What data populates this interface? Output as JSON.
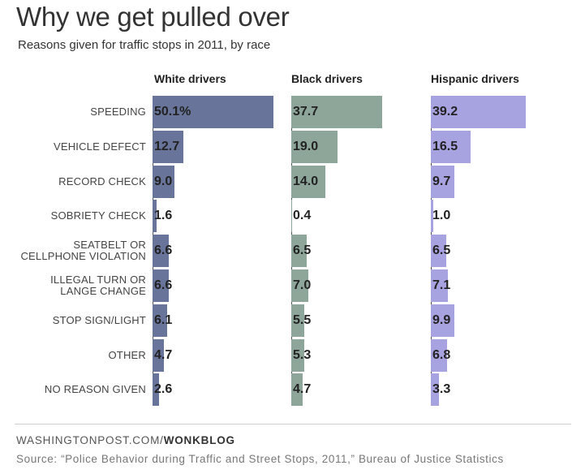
{
  "title": "Why we get pulled over",
  "subtitle": "Reasons given for traffic stops in 2011, by race",
  "credit_prefix": "WASHINGTONPOST.COM/",
  "credit_bold": "WONKBLOG",
  "source": "Source: “Police Behavior during Traffic and Street Stops, 2011,” Bureau of Justice Statistics",
  "chart_data": {
    "type": "bar",
    "orientation": "horizontal",
    "title": "Why we get pulled over",
    "subtitle": "Reasons given for traffic stops in 2011, by race",
    "categories": [
      [
        "SPEEDING"
      ],
      [
        "VEHICLE DEFECT"
      ],
      [
        "RECORD CHECK"
      ],
      [
        "SOBRIETY CHECK"
      ],
      [
        "SEATBELT OR",
        "CELLPHONE VIOLATION"
      ],
      [
        "ILLEGAL TURN OR",
        "LANGE CHANGE"
      ],
      [
        "STOP SIGN/LIGHT"
      ],
      [
        "OTHER"
      ],
      [
        "NO REASON GIVEN"
      ]
    ],
    "series": [
      {
        "name": "White drivers",
        "color": "#68749a",
        "values": [
          50.1,
          12.7,
          9.0,
          1.6,
          6.6,
          6.6,
          6.1,
          4.7,
          2.6
        ],
        "labels": [
          "50.1%",
          "12.7",
          "9.0",
          "1.6",
          "6.6",
          "6.6",
          "6.1",
          "4.7",
          "2.6"
        ]
      },
      {
        "name": "Black drivers",
        "color": "#8ea69a",
        "values": [
          37.7,
          19.0,
          14.0,
          0.4,
          6.5,
          7.0,
          5.5,
          5.3,
          4.7
        ],
        "labels": [
          "37.7",
          "19.0",
          "14.0",
          "0.4",
          "6.5",
          "7.0",
          "5.5",
          "5.3",
          "4.7"
        ]
      },
      {
        "name": "Hispanic drivers",
        "color": "#a7a2e0",
        "values": [
          39.2,
          16.5,
          9.7,
          1.0,
          6.5,
          7.1,
          9.9,
          6.8,
          3.3
        ],
        "labels": [
          "39.2",
          "16.5",
          "9.7",
          "1.0",
          "6.5",
          "7.1",
          "9.9",
          "6.8",
          "3.3"
        ]
      }
    ],
    "xlim": [
      0,
      50.1
    ],
    "grid": false,
    "legend": "none"
  }
}
